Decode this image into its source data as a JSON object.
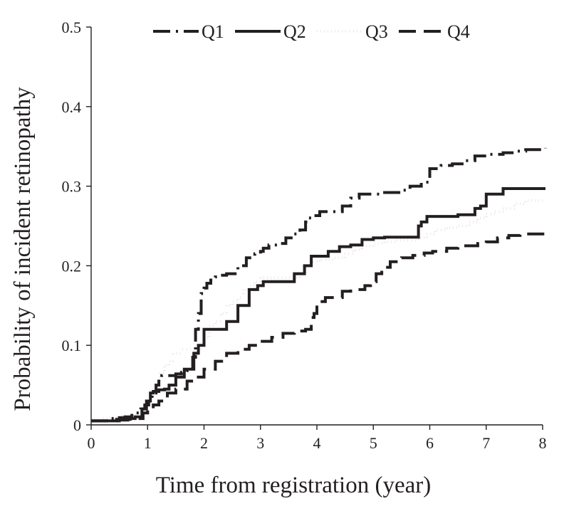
{
  "chart_data": {
    "type": "line",
    "step": true,
    "title": "",
    "xlabel": "Time from registration (year)",
    "ylabel": "Probability of incident retinopathy",
    "xlim": [
      0,
      8
    ],
    "ylim": [
      0,
      0.5
    ],
    "xticks": [
      "0",
      "1",
      "2",
      "3",
      "4",
      "5",
      "6",
      "7",
      "8"
    ],
    "yticks": [
      "0",
      "0.1",
      "0.2",
      "0.3",
      "0.4",
      "0.5"
    ],
    "grid": false,
    "legend_position": "top",
    "series": [
      {
        "name": "Q1",
        "style": "dash-dot",
        "x": [
          0,
          0.35,
          0.5,
          0.6,
          0.72,
          0.8,
          0.88,
          0.95,
          1.02,
          1.08,
          1.15,
          1.2,
          1.25,
          1.5,
          1.6,
          1.7,
          1.8,
          1.85,
          1.9,
          1.95,
          2.0,
          2.05,
          2.12,
          2.2,
          2.3,
          2.4,
          2.5,
          2.6,
          2.75,
          2.9,
          3.0,
          3.05,
          3.15,
          3.3,
          3.45,
          3.6,
          3.7,
          3.8,
          3.85,
          3.95,
          4.05,
          4.15,
          4.3,
          4.45,
          4.6,
          4.75,
          4.9,
          5.05,
          5.2,
          5.35,
          5.5,
          5.65,
          5.85,
          6.0,
          6.2,
          6.4,
          6.6,
          6.8,
          7.0,
          7.15,
          7.3,
          7.5,
          7.7,
          8.05
        ],
        "y": [
          0.005,
          0.008,
          0.009,
          0.01,
          0.012,
          0.015,
          0.02,
          0.025,
          0.03,
          0.04,
          0.05,
          0.058,
          0.062,
          0.064,
          0.066,
          0.068,
          0.085,
          0.12,
          0.14,
          0.165,
          0.172,
          0.178,
          0.182,
          0.186,
          0.188,
          0.19,
          0.19,
          0.2,
          0.21,
          0.215,
          0.218,
          0.222,
          0.226,
          0.228,
          0.235,
          0.24,
          0.245,
          0.255,
          0.26,
          0.263,
          0.268,
          0.268,
          0.268,
          0.275,
          0.285,
          0.29,
          0.29,
          0.29,
          0.292,
          0.292,
          0.295,
          0.3,
          0.305,
          0.322,
          0.326,
          0.328,
          0.332,
          0.338,
          0.34,
          0.34,
          0.342,
          0.344,
          0.346,
          0.348
        ]
      },
      {
        "name": "Q2",
        "style": "solid",
        "x": [
          0,
          0.45,
          0.6,
          0.78,
          0.9,
          0.98,
          1.05,
          1.1,
          1.2,
          1.3,
          1.38,
          1.5,
          1.65,
          1.82,
          1.9,
          2.0,
          2.1,
          2.25,
          2.4,
          2.6,
          2.8,
          2.95,
          3.05,
          3.2,
          3.4,
          3.6,
          3.78,
          3.9,
          4.05,
          4.2,
          4.4,
          4.6,
          4.8,
          5.0,
          5.2,
          5.4,
          5.6,
          5.8,
          5.85,
          5.95,
          6.1,
          6.3,
          6.5,
          6.7,
          6.8,
          6.9,
          7.0,
          7.3,
          7.6,
          8.05
        ],
        "y": [
          0.005,
          0.007,
          0.008,
          0.01,
          0.02,
          0.03,
          0.04,
          0.042,
          0.044,
          0.045,
          0.05,
          0.06,
          0.07,
          0.09,
          0.1,
          0.12,
          0.12,
          0.12,
          0.13,
          0.15,
          0.17,
          0.175,
          0.18,
          0.18,
          0.18,
          0.19,
          0.2,
          0.212,
          0.212,
          0.218,
          0.224,
          0.226,
          0.233,
          0.235,
          0.236,
          0.236,
          0.236,
          0.25,
          0.255,
          0.262,
          0.262,
          0.262,
          0.264,
          0.264,
          0.272,
          0.275,
          0.29,
          0.297,
          0.297,
          0.297
        ]
      },
      {
        "name": "Q3",
        "style": "dotted",
        "x": [
          0,
          0.2,
          0.35,
          0.55,
          0.7,
          0.82,
          0.9,
          0.98,
          1.05,
          1.1,
          1.15,
          1.22,
          1.3,
          1.38,
          1.45,
          1.6,
          1.75,
          1.9,
          2.0,
          2.1,
          2.2,
          2.3,
          2.4,
          2.5,
          2.6,
          2.7,
          2.8,
          2.9,
          3.0,
          3.15,
          3.3,
          3.5,
          3.7,
          3.8,
          3.9,
          4.05,
          4.3,
          4.5,
          4.65,
          4.8,
          5.0,
          5.2,
          5.4,
          5.6,
          5.8,
          5.95,
          6.1,
          6.3,
          6.5,
          6.7,
          6.85,
          7.0,
          7.15,
          7.3,
          7.5,
          7.7,
          8.05
        ],
        "y": [
          0.005,
          0.008,
          0.01,
          0.012,
          0.013,
          0.015,
          0.018,
          0.025,
          0.035,
          0.045,
          0.055,
          0.065,
          0.075,
          0.08,
          0.09,
          0.095,
          0.095,
          0.095,
          0.11,
          0.125,
          0.13,
          0.14,
          0.15,
          0.155,
          0.16,
          0.17,
          0.175,
          0.18,
          0.185,
          0.185,
          0.185,
          0.185,
          0.19,
          0.2,
          0.205,
          0.208,
          0.21,
          0.215,
          0.22,
          0.225,
          0.228,
          0.23,
          0.232,
          0.232,
          0.235,
          0.24,
          0.245,
          0.248,
          0.25,
          0.255,
          0.26,
          0.265,
          0.268,
          0.272,
          0.278,
          0.282,
          0.282
        ]
      },
      {
        "name": "Q4",
        "style": "dashed",
        "x": [
          0,
          0.5,
          0.65,
          0.82,
          0.92,
          1.0,
          1.1,
          1.2,
          1.35,
          1.5,
          1.7,
          1.85,
          2.0,
          2.2,
          2.4,
          2.6,
          2.8,
          3.0,
          3.2,
          3.4,
          3.6,
          3.75,
          3.8,
          3.9,
          3.95,
          4.0,
          4.05,
          4.15,
          4.3,
          4.45,
          4.6,
          4.75,
          4.85,
          4.95,
          5.05,
          5.15,
          5.3,
          5.5,
          5.7,
          5.9,
          6.05,
          6.3,
          6.5,
          6.7,
          6.85,
          7.0,
          7.2,
          7.4,
          7.6,
          8.05
        ],
        "y": [
          0.005,
          0.006,
          0.007,
          0.008,
          0.015,
          0.02,
          0.025,
          0.03,
          0.04,
          0.045,
          0.055,
          0.06,
          0.07,
          0.08,
          0.09,
          0.095,
          0.1,
          0.105,
          0.11,
          0.115,
          0.118,
          0.118,
          0.12,
          0.135,
          0.14,
          0.15,
          0.155,
          0.16,
          0.16,
          0.168,
          0.17,
          0.17,
          0.175,
          0.18,
          0.19,
          0.198,
          0.205,
          0.21,
          0.213,
          0.216,
          0.218,
          0.222,
          0.225,
          0.225,
          0.228,
          0.23,
          0.235,
          0.238,
          0.24,
          0.24
        ]
      }
    ]
  }
}
